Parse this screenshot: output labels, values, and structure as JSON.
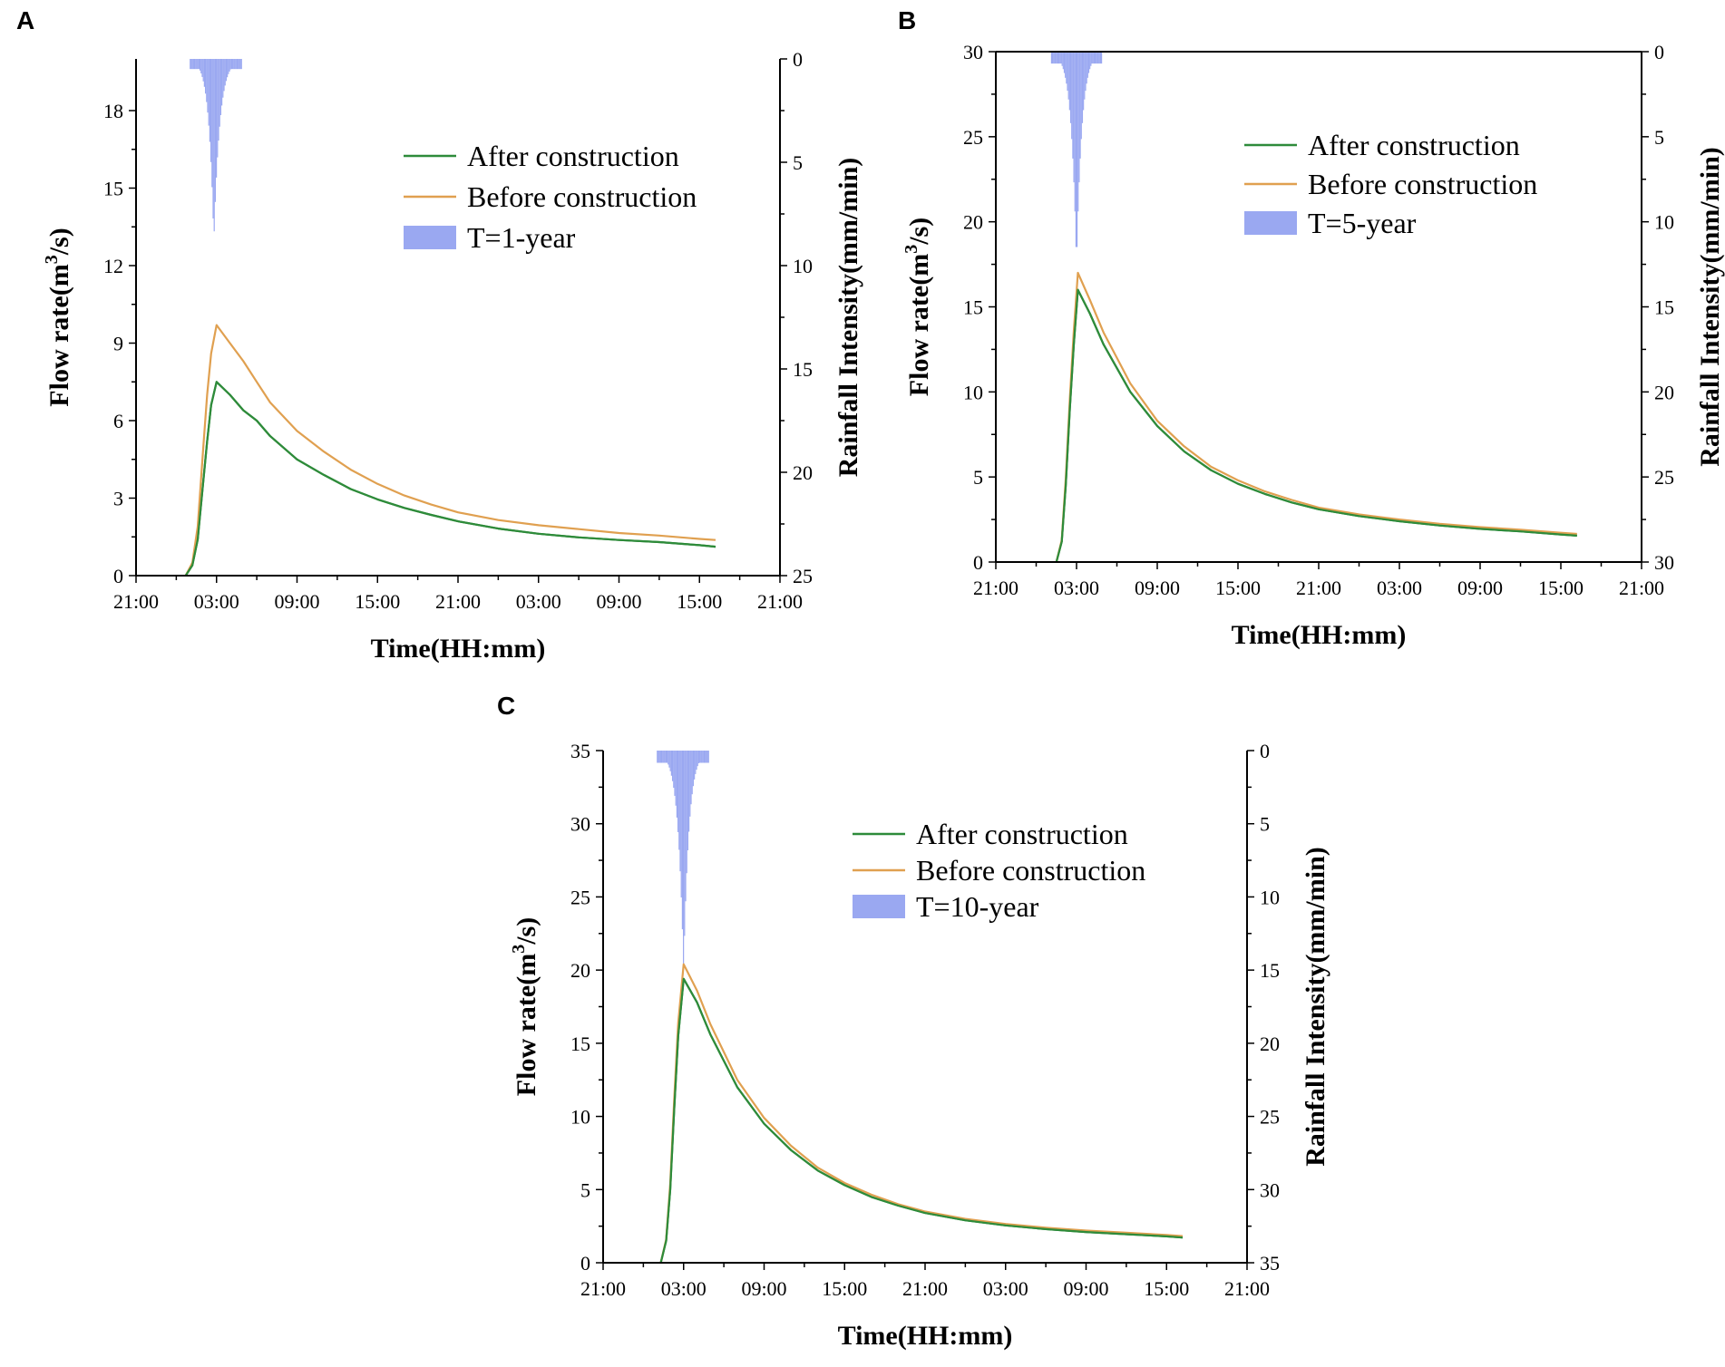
{
  "chart_data": [
    {
      "type": "line",
      "panel_label": "A",
      "xlabel": "Time(HH:mm)",
      "ylabel_main": "Flow rate(m",
      "ylabel_sup": "3",
      "ylabel_tail": "/s)",
      "y2label": "Rainfall Intensity(mm/min)",
      "x_ticks": [
        "21:00",
        "03:00",
        "09:00",
        "15:00",
        "21:00",
        "03:00",
        "09:00",
        "15:00",
        "21:00"
      ],
      "xlim_hours": [
        0,
        48
      ],
      "ylim": [
        0,
        20
      ],
      "y_ticks": [
        0,
        3,
        6,
        9,
        12,
        15,
        18
      ],
      "y2lim": [
        0,
        25
      ],
      "y2_ticks": [
        0,
        5,
        10,
        15,
        20,
        25
      ],
      "legend_position": "upper-right",
      "series": [
        {
          "name": "After construction",
          "color": "#2e8b3a",
          "x": [
            3.7,
            4.2,
            4.6,
            5.0,
            5.3,
            5.6,
            6.0,
            7.0,
            8.0,
            9.0,
            10.0,
            12.0,
            14.0,
            16.0,
            18.0,
            20.0,
            22.0,
            24.0,
            27.0,
            30.0,
            33.0,
            36.0,
            39.0,
            42.0,
            43.2
          ],
          "y": [
            0,
            0.4,
            1.4,
            3.6,
            5.2,
            6.6,
            7.5,
            7.0,
            6.4,
            6.0,
            5.4,
            4.5,
            3.9,
            3.35,
            2.95,
            2.62,
            2.35,
            2.1,
            1.82,
            1.62,
            1.48,
            1.38,
            1.3,
            1.18,
            1.12
          ]
        },
        {
          "name": "Before construction",
          "color": "#e0a050",
          "x": [
            3.7,
            4.2,
            4.6,
            5.0,
            5.3,
            5.6,
            6.0,
            7.0,
            8.0,
            9.0,
            10.0,
            12.0,
            14.0,
            16.0,
            18.0,
            20.0,
            22.0,
            24.0,
            27.0,
            30.0,
            33.0,
            36.0,
            39.0,
            42.0,
            43.2
          ],
          "y": [
            0,
            0.5,
            1.9,
            4.9,
            7.0,
            8.6,
            9.7,
            9.0,
            8.3,
            7.5,
            6.7,
            5.6,
            4.8,
            4.1,
            3.55,
            3.1,
            2.75,
            2.45,
            2.15,
            1.95,
            1.8,
            1.65,
            1.55,
            1.42,
            1.38
          ]
        }
      ],
      "rainfall": {
        "name": "T=1-year",
        "color": "#8899ee",
        "max": 8.9,
        "start": 4.0,
        "peak": 5.8,
        "end": 7.9
      }
    },
    {
      "type": "line",
      "panel_label": "B",
      "xlabel": "Time(HH:mm)",
      "ylabel_main": "Flow rate(m",
      "ylabel_sup": "3",
      "ylabel_tail": "/s)",
      "y2label": "Rainfall Intensity(mm/min)",
      "x_ticks": [
        "21:00",
        "03:00",
        "09:00",
        "15:00",
        "21:00",
        "03:00",
        "09:00",
        "15:00",
        "21:00"
      ],
      "xlim_hours": [
        0,
        48
      ],
      "ylim": [
        0,
        30
      ],
      "y_ticks": [
        0,
        5,
        10,
        15,
        20,
        25,
        30
      ],
      "y2lim": [
        0,
        30
      ],
      "y2_ticks": [
        0,
        5,
        10,
        15,
        20,
        25,
        30
      ],
      "legend_position": "upper-right",
      "series": [
        {
          "name": "After construction",
          "color": "#2e8b3a",
          "x": [
            4.5,
            4.9,
            5.2,
            5.5,
            5.8,
            6.1,
            7.0,
            8.0,
            9.0,
            10.0,
            12.0,
            14.0,
            16.0,
            18.0,
            20.0,
            22.0,
            24.0,
            27.0,
            30.0,
            33.0,
            36.0,
            39.0,
            42.0,
            43.2
          ],
          "y": [
            0,
            1.2,
            4.5,
            9.0,
            12.8,
            16.0,
            14.6,
            12.8,
            11.4,
            10.0,
            8.0,
            6.5,
            5.4,
            4.6,
            4.0,
            3.5,
            3.1,
            2.7,
            2.4,
            2.15,
            1.95,
            1.8,
            1.62,
            1.55
          ]
        },
        {
          "name": "Before construction",
          "color": "#e0a050",
          "x": [
            4.5,
            4.9,
            5.2,
            5.5,
            5.8,
            6.1,
            7.0,
            8.0,
            9.0,
            10.0,
            12.0,
            14.0,
            16.0,
            18.0,
            20.0,
            22.0,
            24.0,
            27.0,
            30.0,
            33.0,
            36.0,
            39.0,
            42.0,
            43.2
          ],
          "y": [
            0,
            1.3,
            4.9,
            9.6,
            13.6,
            17.0,
            15.4,
            13.5,
            12.0,
            10.5,
            8.3,
            6.8,
            5.6,
            4.8,
            4.15,
            3.65,
            3.2,
            2.8,
            2.5,
            2.25,
            2.05,
            1.9,
            1.72,
            1.65
          ]
        }
      ],
      "rainfall": {
        "name": "T=5-year",
        "color": "#8899ee",
        "max": 12.7,
        "start": 4.1,
        "peak": 6.0,
        "end": 7.9
      }
    },
    {
      "type": "line",
      "panel_label": "C",
      "xlabel": "Time(HH:mm)",
      "ylabel_main": "Flow rate(m",
      "ylabel_sup": "3",
      "ylabel_tail": "/s)",
      "y2label": "Rainfall Intensity(mm/min)",
      "x_ticks": [
        "21:00",
        "03:00",
        "09:00",
        "15:00",
        "21:00",
        "03:00",
        "09:00",
        "15:00",
        "21:00"
      ],
      "xlim_hours": [
        0,
        48
      ],
      "ylim": [
        0,
        35
      ],
      "y_ticks": [
        0,
        5,
        10,
        15,
        20,
        25,
        30,
        35
      ],
      "y2lim": [
        0,
        35
      ],
      "y2_ticks": [
        0,
        5,
        10,
        15,
        20,
        25,
        30,
        35
      ],
      "legend_position": "upper-right",
      "series": [
        {
          "name": "After construction",
          "color": "#2e8b3a",
          "x": [
            4.3,
            4.7,
            5.0,
            5.3,
            5.6,
            6.0,
            7.0,
            8.0,
            9.0,
            10.0,
            12.0,
            14.0,
            16.0,
            18.0,
            20.0,
            22.0,
            24.0,
            27.0,
            30.0,
            33.0,
            36.0,
            39.0,
            42.0,
            43.2
          ],
          "y": [
            0,
            1.5,
            5.0,
            10.5,
            15.5,
            19.4,
            17.8,
            15.6,
            13.8,
            12.0,
            9.5,
            7.7,
            6.3,
            5.3,
            4.5,
            3.9,
            3.4,
            2.9,
            2.55,
            2.3,
            2.1,
            1.95,
            1.8,
            1.72
          ]
        },
        {
          "name": "Before construction",
          "color": "#e0a050",
          "x": [
            4.3,
            4.7,
            5.0,
            5.3,
            5.6,
            6.0,
            7.0,
            8.0,
            9.0,
            10.0,
            12.0,
            14.0,
            16.0,
            18.0,
            20.0,
            22.0,
            24.0,
            27.0,
            30.0,
            33.0,
            36.0,
            39.0,
            42.0,
            43.2
          ],
          "y": [
            0,
            1.6,
            5.4,
            11.2,
            16.4,
            20.4,
            18.6,
            16.3,
            14.4,
            12.5,
            9.9,
            8.0,
            6.5,
            5.45,
            4.65,
            4.0,
            3.5,
            3.0,
            2.65,
            2.4,
            2.2,
            2.05,
            1.9,
            1.82
          ]
        }
      ],
      "rainfall": {
        "name": "T=10-year",
        "color": "#8899ee",
        "max": 15.2,
        "start": 4.0,
        "peak": 6.0,
        "end": 7.9
      }
    }
  ]
}
